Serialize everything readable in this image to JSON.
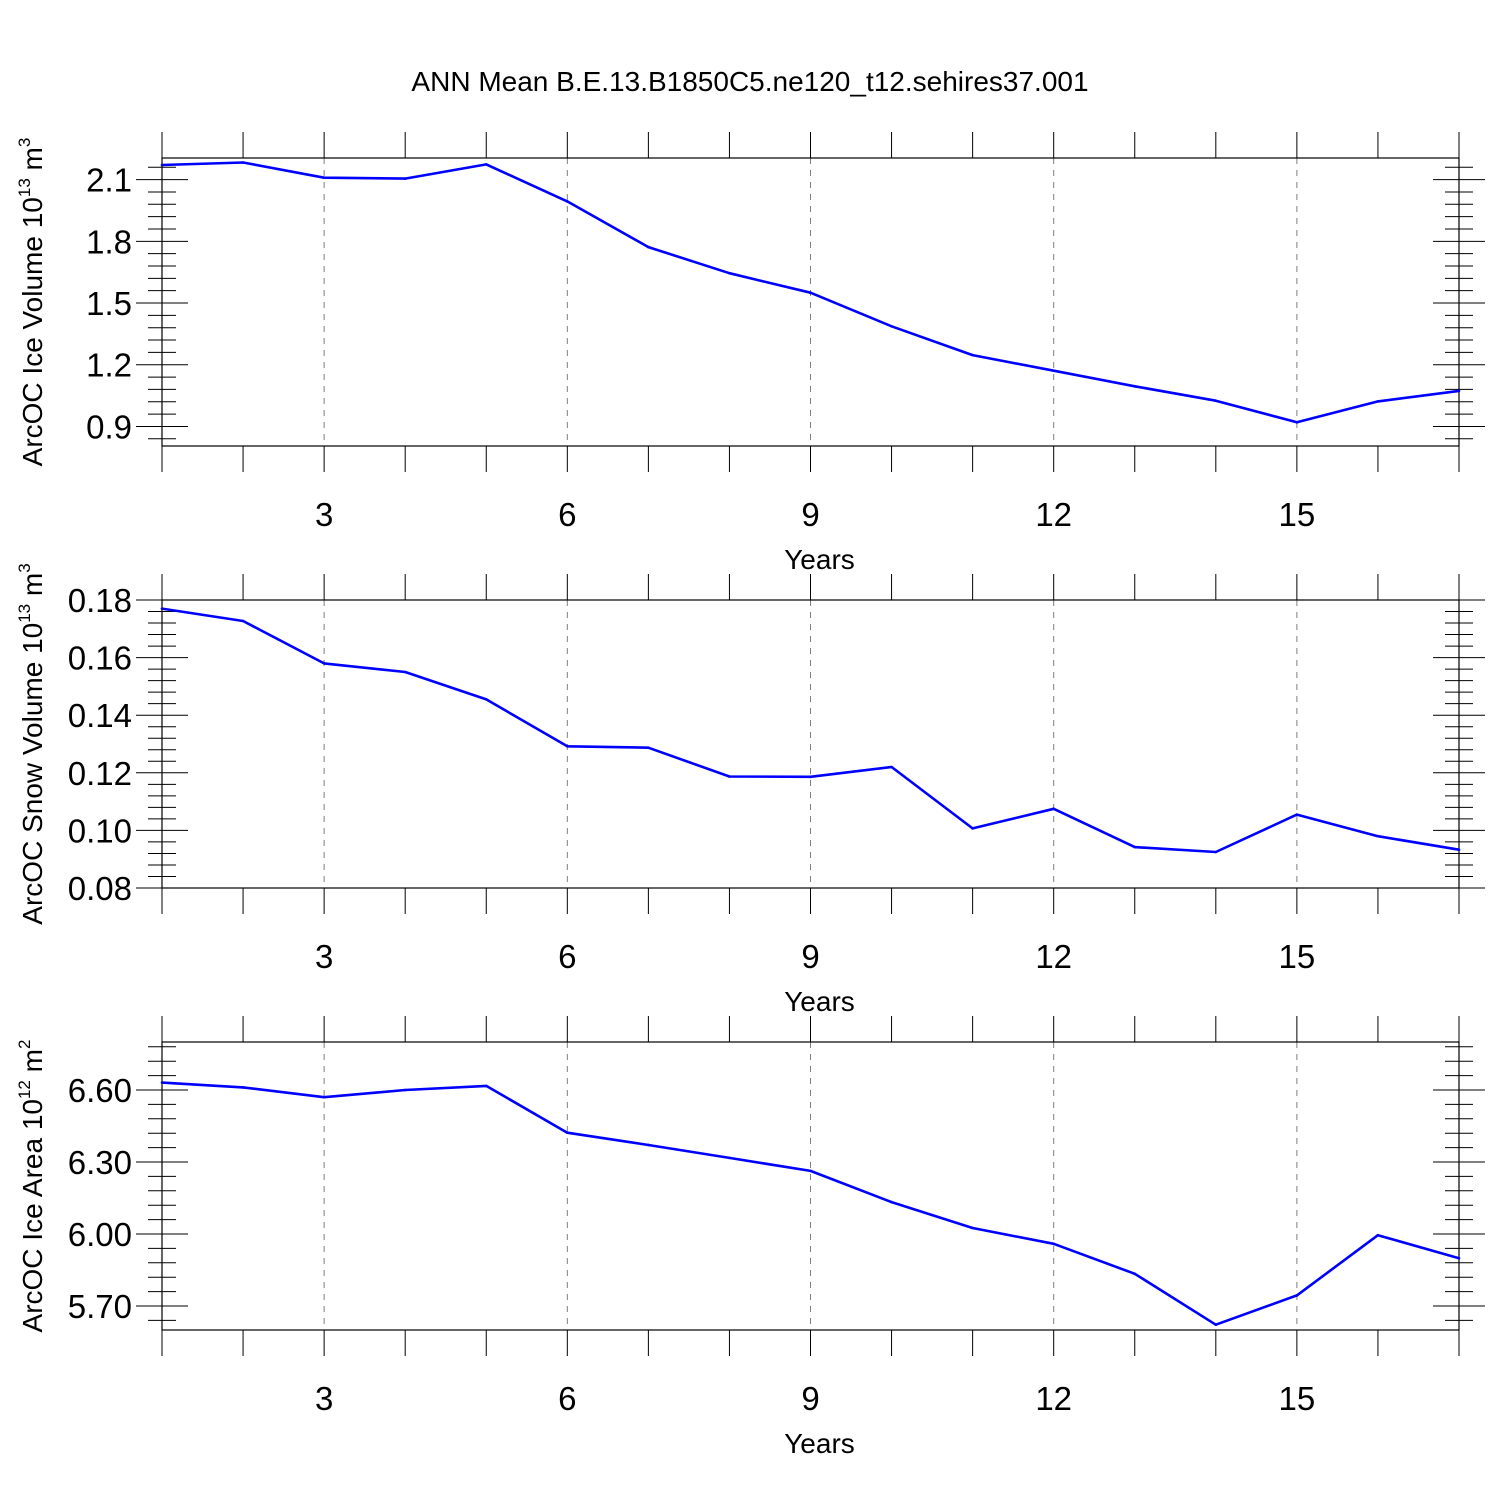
{
  "title": "ANN Mean B.E.13.B1850C5.ne120_t12.sehires37.001",
  "colors": {
    "line": "#0000ff",
    "frame": "#000000",
    "grid": "#7f7f7f"
  },
  "chart_data": [
    {
      "type": "line",
      "ylabel_main": "ArcOC Ice Volume 10",
      "ylabel_exp": "13",
      "ylabel_unit": "m",
      "ylabel_unit_exp": "3",
      "xlabel": "Years",
      "xlim": [
        1,
        17
      ],
      "ylim": [
        0.805,
        2.205
      ],
      "yticks": [
        0.9,
        1.2,
        1.5,
        1.8,
        2.1
      ],
      "ytick_labels": [
        "0.9",
        "1.2",
        "1.5",
        "1.8",
        "2.1"
      ],
      "xticks": [
        3,
        6,
        9,
        12,
        15
      ],
      "xtick_labels": [
        "3",
        "6",
        "9",
        "12",
        "15"
      ],
      "x": [
        1,
        2,
        3,
        4,
        5,
        6,
        7,
        8,
        9,
        10,
        11,
        12,
        13,
        14,
        15,
        16,
        17
      ],
      "series": [
        {
          "name": "ArcOC Ice Volume",
          "values": [
            2.171,
            2.183,
            2.109,
            2.105,
            2.174,
            1.994,
            1.772,
            1.645,
            1.55,
            1.387,
            1.247,
            1.171,
            1.095,
            1.025,
            0.92,
            1.022,
            1.073
          ]
        }
      ]
    },
    {
      "type": "line",
      "ylabel_main": "ArcOC Snow Volume 10",
      "ylabel_exp": "13",
      "ylabel_unit": "m",
      "ylabel_unit_exp": "3",
      "xlabel": "Years",
      "xlim": [
        1,
        17
      ],
      "ylim": [
        0.08,
        0.18
      ],
      "yticks": [
        0.08,
        0.1,
        0.12,
        0.14,
        0.16,
        0.18
      ],
      "ytick_labels": [
        "0.08",
        "0.10",
        "0.12",
        "0.14",
        "0.16",
        "0.18"
      ],
      "xticks": [
        3,
        6,
        9,
        12,
        15
      ],
      "xtick_labels": [
        "3",
        "6",
        "9",
        "12",
        "15"
      ],
      "x": [
        1,
        2,
        3,
        4,
        5,
        6,
        7,
        8,
        9,
        10,
        11,
        12,
        13,
        14,
        15,
        16,
        17
      ],
      "series": [
        {
          "name": "ArcOC Snow Volume",
          "values": [
            0.177,
            0.1727,
            0.158,
            0.155,
            0.1455,
            0.1292,
            0.1287,
            0.1187,
            0.1186,
            0.122,
            0.1007,
            0.1075,
            0.0942,
            0.0925,
            0.1055,
            0.098,
            0.0933
          ]
        }
      ]
    },
    {
      "type": "line",
      "ylabel_main": "ArcOC Ice Area 10",
      "ylabel_exp": "12",
      "ylabel_unit": "m",
      "ylabel_unit_exp": "2",
      "xlabel": "Years",
      "xlim": [
        1,
        17
      ],
      "ylim": [
        5.6,
        6.8
      ],
      "yticks": [
        5.7,
        6.0,
        6.3,
        6.6
      ],
      "ytick_labels": [
        "5.70",
        "6.00",
        "6.30",
        "6.60"
      ],
      "xticks": [
        3,
        6,
        9,
        12,
        15
      ],
      "xtick_labels": [
        "3",
        "6",
        "9",
        "12",
        "15"
      ],
      "x": [
        1,
        2,
        3,
        4,
        5,
        6,
        7,
        8,
        9,
        10,
        11,
        12,
        13,
        14,
        15,
        16,
        17
      ],
      "series": [
        {
          "name": "ArcOC Ice Area",
          "values": [
            6.631,
            6.611,
            6.57,
            6.6,
            6.617,
            6.422,
            6.371,
            6.317,
            6.263,
            6.133,
            6.025,
            5.959,
            5.834,
            5.622,
            5.744,
            5.995,
            5.899
          ]
        }
      ]
    }
  ]
}
